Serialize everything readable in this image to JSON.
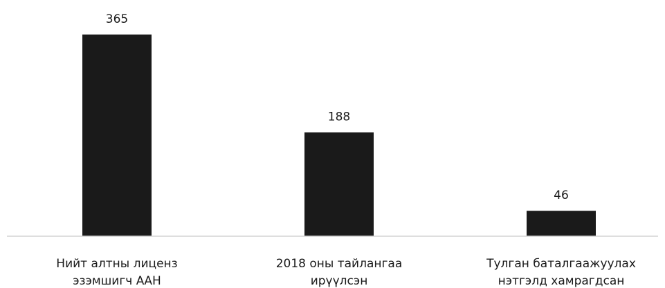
{
  "chart_data": {
    "type": "bar",
    "categories": [
      [
        "Нийт алтны лиценз",
        "эзэмшигч ААН"
      ],
      [
        "2018 оны тайлангаа",
        "ирүүлсэн"
      ],
      [
        "Тулган баталгаажуулах",
        "нэтгэлд хамрагдсан"
      ]
    ],
    "values": [
      365,
      188,
      46
    ],
    "data_labels": [
      "365",
      "188",
      "46"
    ],
    "title": "",
    "xlabel": "",
    "ylabel": "",
    "ylim": [
      0,
      365
    ],
    "grid": false,
    "legend": "none",
    "colors": {
      "bar": "#1a1a1a",
      "baseline": "#d4d4d4",
      "text": "#1a1a1a"
    }
  }
}
